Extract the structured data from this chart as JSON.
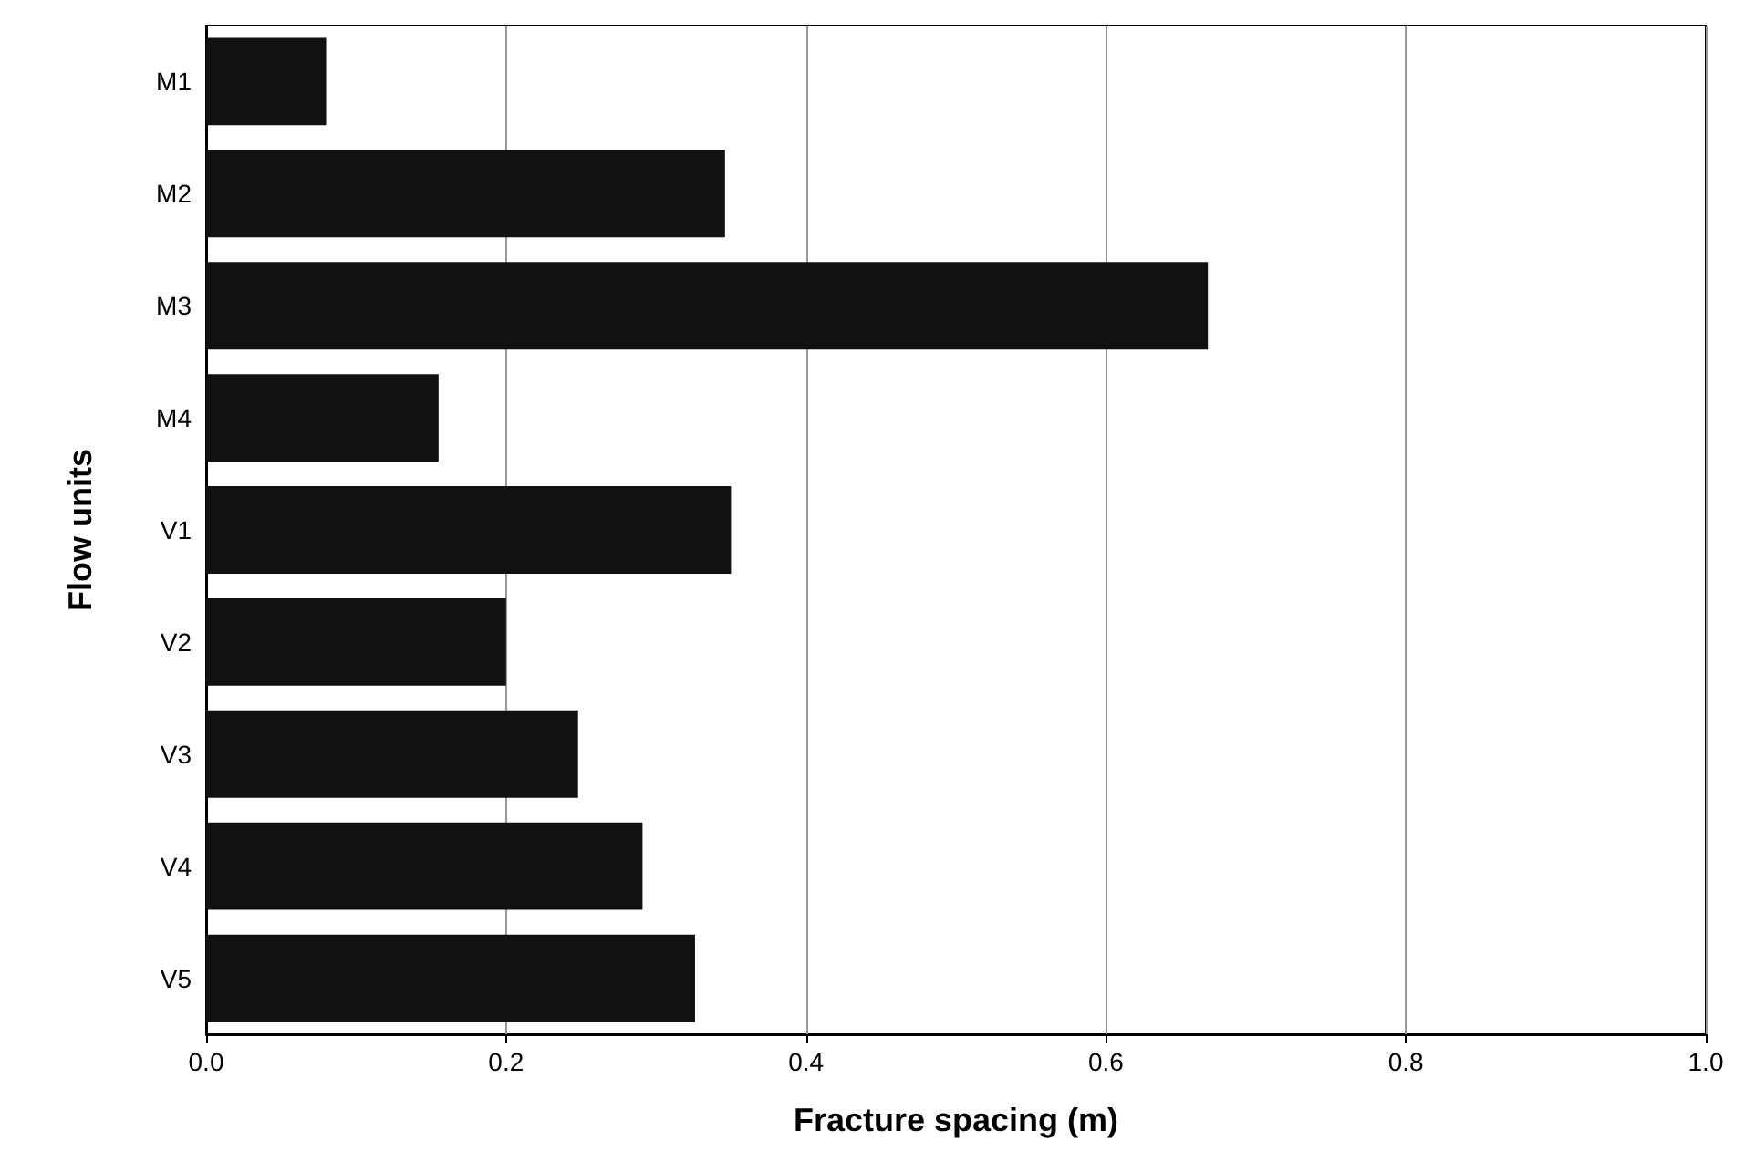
{
  "chart_data": {
    "type": "bar",
    "orientation": "horizontal",
    "categories": [
      "M1",
      "M2",
      "M3",
      "M4",
      "V1",
      "V2",
      "V3",
      "V4",
      "V5"
    ],
    "values": [
      0.08,
      0.346,
      0.668,
      0.155,
      0.35,
      0.2,
      0.248,
      0.291,
      0.326
    ],
    "color": "#111111",
    "xlabel": "Fracture spacing (m)",
    "ylabel": "Flow units",
    "xlim": [
      0,
      1
    ],
    "xticks": [
      {
        "value": 0,
        "label": "0.0"
      },
      {
        "value": 0.2,
        "label": "0.2"
      },
      {
        "value": 0.4,
        "label": "0.4"
      },
      {
        "value": 0.6,
        "label": "0.6"
      },
      {
        "value": 0.8,
        "label": "0.8"
      },
      {
        "value": 1,
        "label": "1.0"
      }
    ],
    "grid": "x"
  }
}
